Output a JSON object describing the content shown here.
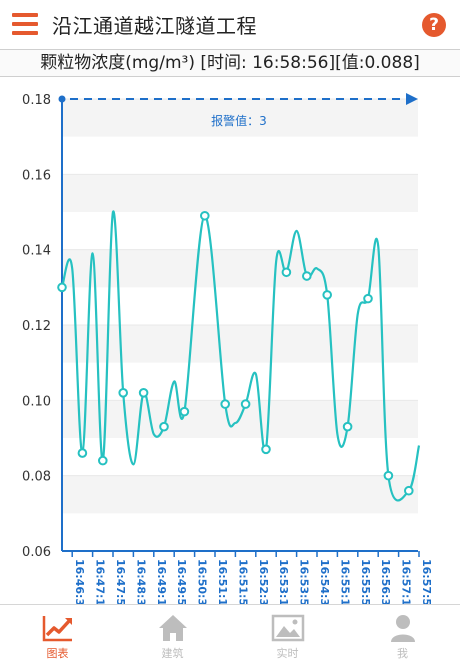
{
  "header": {
    "title": "沿江通道越江隧道工程",
    "menu_icon": "hamburger-menu-icon",
    "help_icon": "help-question-icon",
    "help_glyph": "?"
  },
  "subtitle": "颗粒物浓度(mg/m³) [时间: 16:58:56][值:0.088]",
  "colors": {
    "accent": "#e5592e",
    "line": "#26c1c1",
    "threshold": "#1e6fc9",
    "inactive": "#bdbdbd"
  },
  "chart_data": {
    "type": "line",
    "threshold_label": "报警值：3",
    "ylim": [
      0.06,
      0.18
    ],
    "y_ticks": [
      "0.06",
      "0.08",
      "0.10",
      "0.12",
      "0.14",
      "0.16",
      "0.18"
    ],
    "x_ticks": [
      "16:46:3",
      "16:47:1",
      "16:47:5",
      "16:48:3",
      "16:49:1",
      "16:49:5",
      "16:50:3",
      "16:51:1",
      "16:51:5",
      "16:52:3",
      "16:53:1",
      "16:53:5",
      "16:54:3",
      "16:55:1",
      "16:55:5",
      "16:56:3",
      "16:57:1",
      "16:57:5"
    ],
    "grid": true,
    "points": [
      {
        "t": 0,
        "v": 0.13,
        "m": true
      },
      {
        "t": 0.5,
        "v": 0.135,
        "m": false
      },
      {
        "t": 1,
        "v": 0.086,
        "m": true
      },
      {
        "t": 1.5,
        "v": 0.139,
        "m": false
      },
      {
        "t": 2,
        "v": 0.084,
        "m": true
      },
      {
        "t": 2.5,
        "v": 0.15,
        "m": false
      },
      {
        "t": 3,
        "v": 0.102,
        "m": true
      },
      {
        "t": 3.5,
        "v": 0.083,
        "m": false
      },
      {
        "t": 4,
        "v": 0.102,
        "m": true
      },
      {
        "t": 4.5,
        "v": 0.091,
        "m": false
      },
      {
        "t": 5,
        "v": 0.093,
        "m": true
      },
      {
        "t": 5.5,
        "v": 0.105,
        "m": false
      },
      {
        "t": 6,
        "v": 0.097,
        "m": true
      },
      {
        "t": 7,
        "v": 0.149,
        "m": true
      },
      {
        "t": 8,
        "v": 0.099,
        "m": true
      },
      {
        "t": 8.5,
        "v": 0.094,
        "m": false
      },
      {
        "t": 9,
        "v": 0.099,
        "m": true
      },
      {
        "t": 9.5,
        "v": 0.107,
        "m": false
      },
      {
        "t": 10,
        "v": 0.087,
        "m": true
      },
      {
        "t": 10.5,
        "v": 0.137,
        "m": false
      },
      {
        "t": 11,
        "v": 0.134,
        "m": true
      },
      {
        "t": 11.5,
        "v": 0.145,
        "m": false
      },
      {
        "t": 12,
        "v": 0.133,
        "m": true
      },
      {
        "t": 12.5,
        "v": 0.135,
        "m": false
      },
      {
        "t": 13,
        "v": 0.128,
        "m": true
      },
      {
        "t": 13.5,
        "v": 0.091,
        "m": false
      },
      {
        "t": 14,
        "v": 0.093,
        "m": true
      },
      {
        "t": 14.5,
        "v": 0.123,
        "m": false
      },
      {
        "t": 15,
        "v": 0.127,
        "m": true
      },
      {
        "t": 15.5,
        "v": 0.141,
        "m": false
      },
      {
        "t": 16,
        "v": 0.08,
        "m": true
      },
      {
        "t": 17,
        "v": 0.076,
        "m": true
      },
      {
        "t": 17.5,
        "v": 0.088,
        "m": false
      }
    ]
  },
  "tabs": [
    {
      "label": "图表",
      "icon": "chart-trend-icon",
      "active": true
    },
    {
      "label": "建筑",
      "icon": "home-building-icon",
      "active": false
    },
    {
      "label": "实时",
      "icon": "image-picture-icon",
      "active": false
    },
    {
      "label": "我",
      "icon": "user-profile-icon",
      "active": false
    }
  ]
}
